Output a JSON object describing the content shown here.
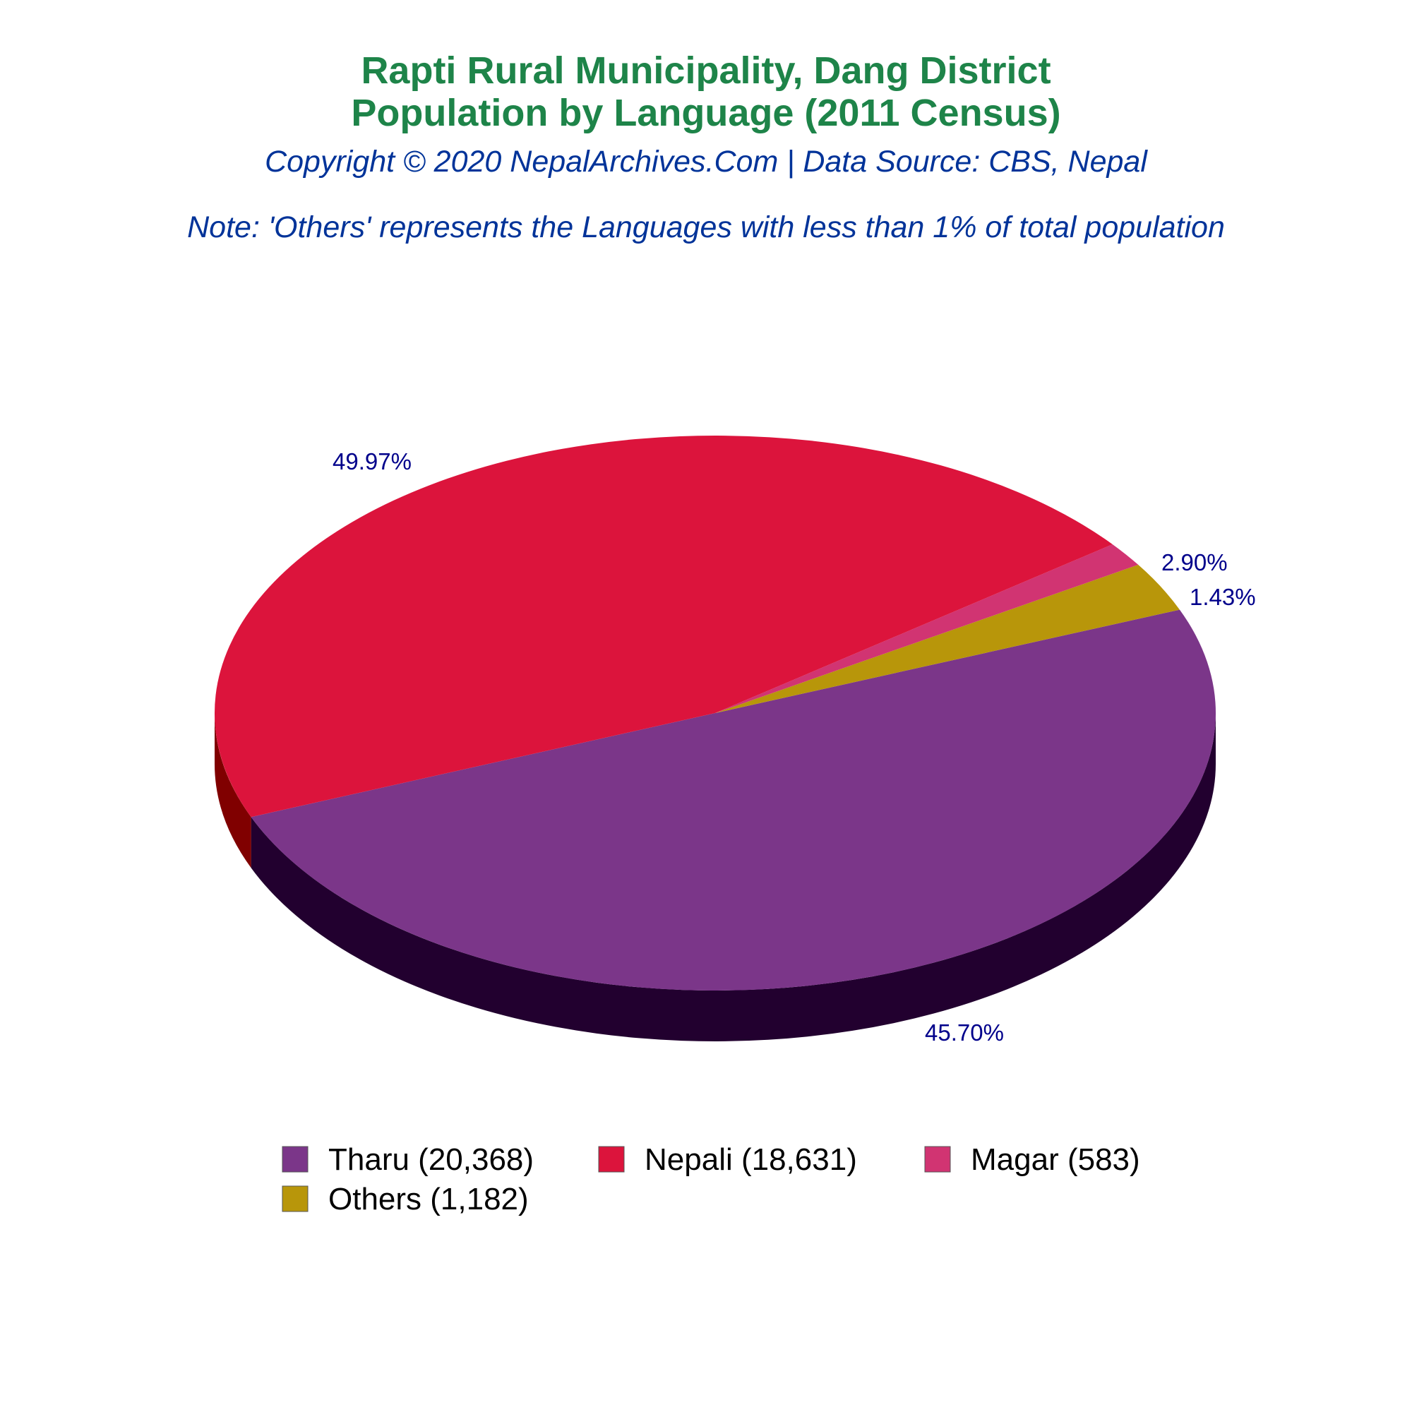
{
  "chart_data": {
    "type": "pie",
    "title_lines": [
      "Rapti Rural Municipality, Dang District",
      "Population by Language (2011 Census)"
    ],
    "subtitle": "Copyright © 2020 NepalArchives.Com | Data Source: CBS, Nepal",
    "note": "Note: 'Others' represents the Languages with less than 1% of total population",
    "slices": [
      {
        "label": "Tharu",
        "value": 20368,
        "percent_label": "49.97%",
        "legend_label": "Tharu (20,368)",
        "color": "#7B3689",
        "side_color": "#22002F"
      },
      {
        "label": "Nepali",
        "value": 18631,
        "percent_label": "45.70%",
        "legend_label": "Nepali (18,631)",
        "color": "#DC143C",
        "side_color": "#800000"
      },
      {
        "label": "Magar",
        "value": 583,
        "percent_label": "1.43%",
        "legend_label": "Magar (583)",
        "color": "#D13472",
        "side_color": "#7A0F3A"
      },
      {
        "label": "Others",
        "value": 1182,
        "percent_label": "2.90%",
        "legend_label": "Others (1,182)",
        "color": "#B8960A",
        "side_color": "#6B5600"
      }
    ],
    "legend_placement": "bottom",
    "colors": {
      "title": "#1E8449",
      "subtitle": "#003399",
      "percent_labels": "#00008B"
    }
  }
}
